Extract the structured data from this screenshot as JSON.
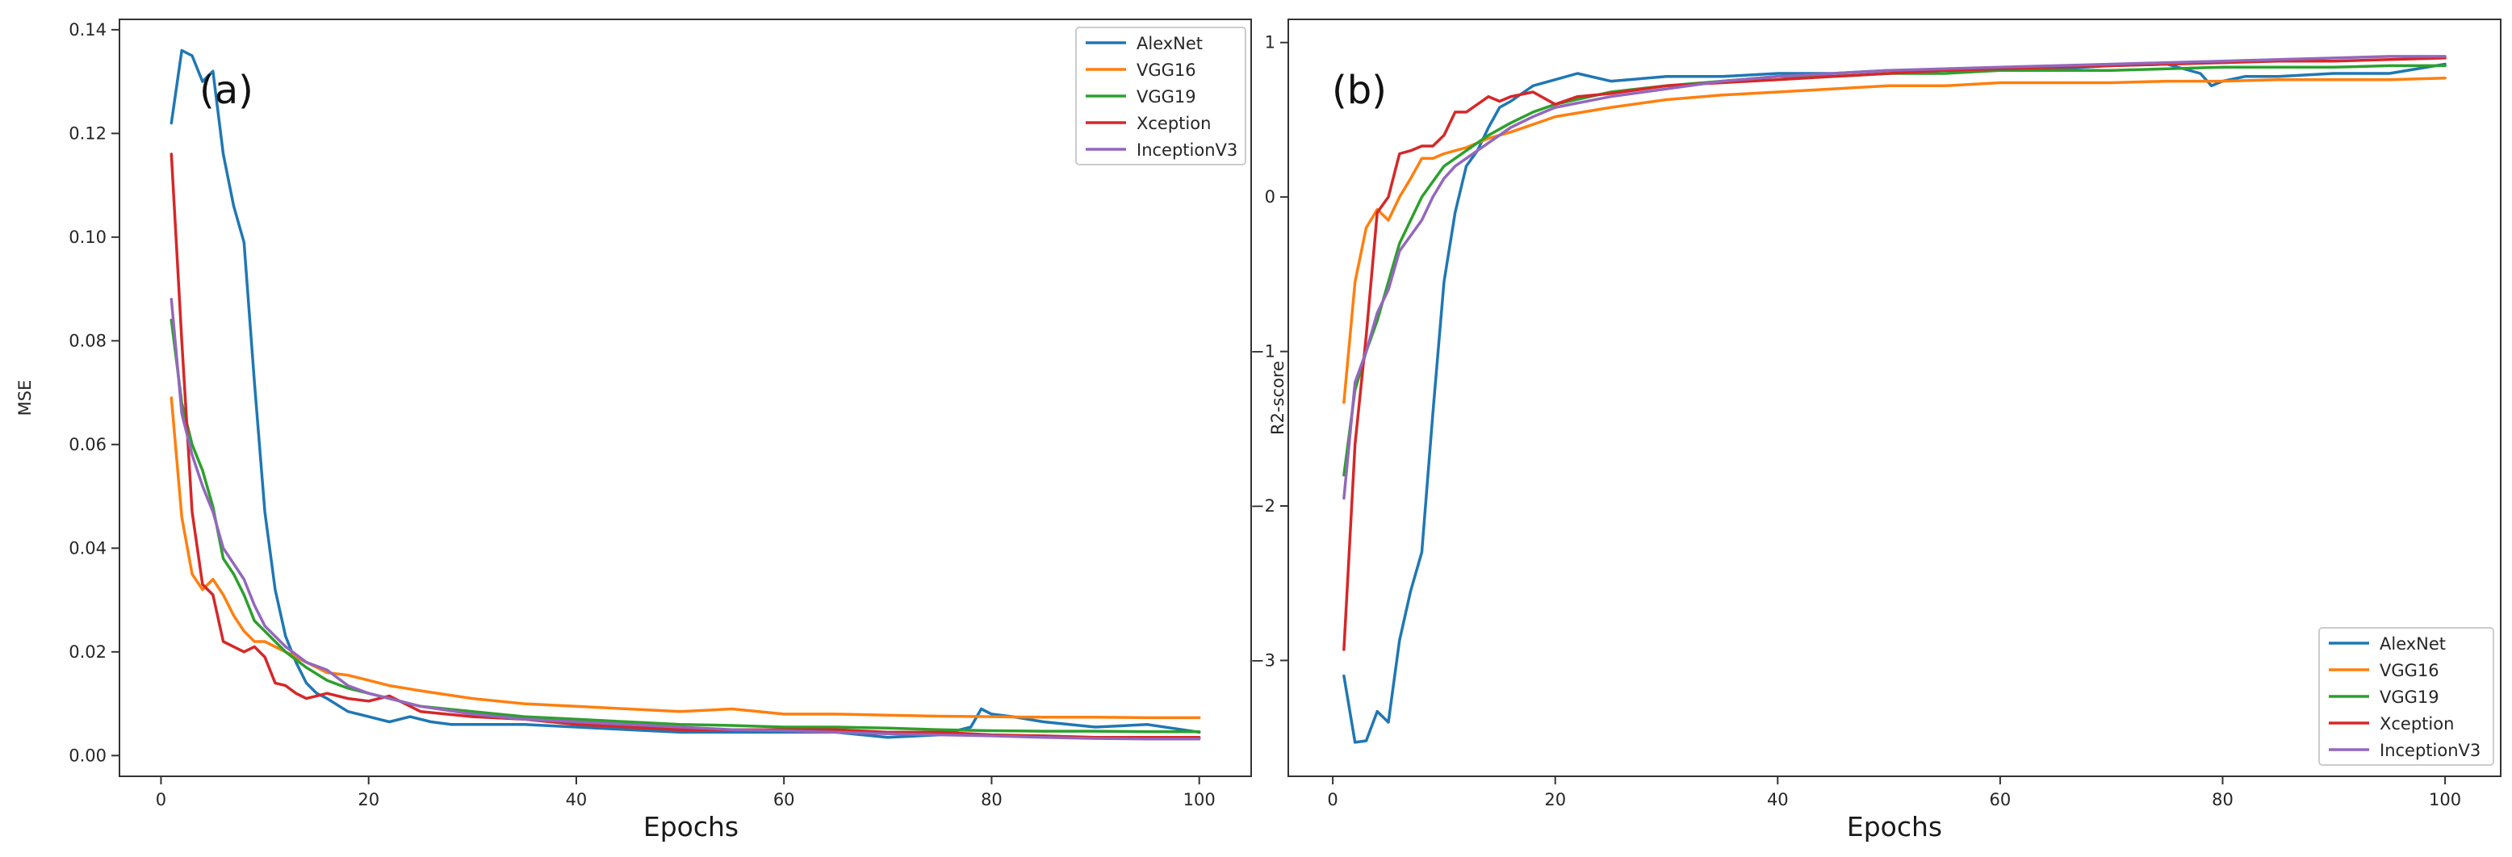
{
  "chart_data": [
    {
      "type": "line",
      "panel_label": "(a)",
      "xlabel": "Epochs",
      "ylabel": "MSE",
      "xlim": [
        -4,
        105
      ],
      "ylim": [
        -0.004,
        0.142
      ],
      "xticks": [
        0,
        20,
        40,
        60,
        80,
        100
      ],
      "yticks": [
        0.0,
        0.02,
        0.04,
        0.06,
        0.08,
        0.1,
        0.12,
        0.14
      ],
      "ytick_labels": [
        "0.00",
        "0.02",
        "0.04",
        "0.06",
        "0.08",
        "0.10",
        "0.12",
        "0.14"
      ],
      "grid": false,
      "legend_position": "top-right",
      "series": [
        {
          "name": "AlexNet",
          "color": "#1f77b4",
          "x": [
            1,
            2,
            3,
            4,
            5,
            6,
            7,
            8,
            9,
            10,
            11,
            12,
            13,
            14,
            15,
            16,
            18,
            20,
            22,
            24,
            26,
            28,
            30,
            35,
            40,
            45,
            50,
            55,
            60,
            65,
            70,
            75,
            78,
            79,
            80,
            82,
            85,
            90,
            95,
            100
          ],
          "values": [
            0.122,
            0.136,
            0.135,
            0.13,
            0.132,
            0.116,
            0.106,
            0.099,
            0.072,
            0.047,
            0.032,
            0.023,
            0.018,
            0.014,
            0.012,
            0.011,
            0.0085,
            0.0075,
            0.0065,
            0.0075,
            0.0065,
            0.006,
            0.006,
            0.006,
            0.0055,
            0.005,
            0.0045,
            0.0045,
            0.0045,
            0.0045,
            0.0035,
            0.004,
            0.0055,
            0.009,
            0.008,
            0.0075,
            0.0065,
            0.0055,
            0.006,
            0.0045
          ]
        },
        {
          "name": "VGG16",
          "color": "#ff7f0e",
          "x": [
            1,
            2,
            3,
            4,
            5,
            6,
            7,
            8,
            9,
            10,
            11,
            12,
            14,
            16,
            18,
            20,
            22,
            25,
            30,
            35,
            40,
            45,
            50,
            55,
            60,
            65,
            70,
            75,
            80,
            85,
            90,
            95,
            100
          ],
          "values": [
            0.069,
            0.046,
            0.035,
            0.032,
            0.034,
            0.031,
            0.027,
            0.024,
            0.022,
            0.022,
            0.021,
            0.02,
            0.018,
            0.016,
            0.0155,
            0.0145,
            0.0135,
            0.0125,
            0.011,
            0.01,
            0.0095,
            0.009,
            0.0085,
            0.009,
            0.008,
            0.008,
            0.0078,
            0.0076,
            0.0075,
            0.0074,
            0.0074,
            0.0073,
            0.0073
          ]
        },
        {
          "name": "VGG19",
          "color": "#2ca02c",
          "x": [
            1,
            2,
            3,
            4,
            5,
            6,
            7,
            8,
            9,
            10,
            11,
            12,
            14,
            16,
            18,
            20,
            22,
            25,
            30,
            35,
            40,
            45,
            50,
            55,
            60,
            65,
            70,
            75,
            80,
            85,
            90,
            95,
            100
          ],
          "values": [
            0.084,
            0.068,
            0.06,
            0.055,
            0.048,
            0.038,
            0.035,
            0.031,
            0.026,
            0.024,
            0.022,
            0.02,
            0.017,
            0.0145,
            0.013,
            0.012,
            0.011,
            0.0095,
            0.0085,
            0.0075,
            0.007,
            0.0065,
            0.006,
            0.0058,
            0.0055,
            0.0055,
            0.0053,
            0.005,
            0.0048,
            0.0047,
            0.0047,
            0.0046,
            0.0046
          ]
        },
        {
          "name": "Xception",
          "color": "#d62728",
          "x": [
            1,
            2,
            3,
            4,
            5,
            6,
            7,
            8,
            9,
            10,
            11,
            12,
            13,
            14,
            15,
            16,
            18,
            20,
            22,
            25,
            30,
            35,
            40,
            45,
            50,
            55,
            60,
            65,
            70,
            75,
            80,
            85,
            90,
            95,
            100
          ],
          "values": [
            0.116,
            0.08,
            0.047,
            0.033,
            0.031,
            0.022,
            0.021,
            0.02,
            0.021,
            0.019,
            0.014,
            0.0135,
            0.012,
            0.011,
            0.0115,
            0.012,
            0.011,
            0.0105,
            0.0115,
            0.0085,
            0.0075,
            0.007,
            0.006,
            0.0055,
            0.005,
            0.005,
            0.005,
            0.005,
            0.0045,
            0.0045,
            0.004,
            0.0038,
            0.0035,
            0.0035,
            0.0035
          ]
        },
        {
          "name": "InceptionV3",
          "color": "#9467bd",
          "x": [
            1,
            2,
            3,
            4,
            5,
            6,
            7,
            8,
            9,
            10,
            11,
            12,
            14,
            16,
            18,
            20,
            22,
            25,
            30,
            35,
            40,
            45,
            50,
            55,
            60,
            65,
            70,
            75,
            80,
            85,
            90,
            95,
            100
          ],
          "values": [
            0.088,
            0.066,
            0.058,
            0.052,
            0.047,
            0.04,
            0.037,
            0.034,
            0.029,
            0.025,
            0.023,
            0.021,
            0.018,
            0.0165,
            0.0135,
            0.012,
            0.011,
            0.0095,
            0.008,
            0.007,
            0.0065,
            0.006,
            0.0055,
            0.005,
            0.0048,
            0.0045,
            0.0042,
            0.004,
            0.0038,
            0.0035,
            0.0033,
            0.0032,
            0.0032
          ]
        }
      ]
    },
    {
      "type": "line",
      "panel_label": "(b)",
      "xlabel": "Epochs",
      "ylabel": "R2-score",
      "xlim": [
        -4,
        105
      ],
      "ylim": [
        -3.75,
        1.15
      ],
      "xticks": [
        0,
        20,
        40,
        60,
        80,
        100
      ],
      "yticks": [
        1,
        0,
        -1,
        -2,
        -3
      ],
      "ytick_labels": [
        "1",
        "0",
        "−1",
        "−2",
        "−3"
      ],
      "grid": false,
      "legend_position": "bottom-right",
      "series": [
        {
          "name": "AlexNet",
          "color": "#1f77b4",
          "x": [
            1,
            2,
            3,
            4,
            5,
            6,
            7,
            8,
            9,
            10,
            11,
            12,
            13,
            14,
            15,
            16,
            18,
            20,
            22,
            25,
            30,
            35,
            40,
            45,
            50,
            55,
            60,
            65,
            70,
            75,
            78,
            79,
            80,
            82,
            85,
            90,
            95,
            100
          ],
          "values": [
            -3.1,
            -3.53,
            -3.52,
            -3.33,
            -3.4,
            -2.87,
            -2.55,
            -2.3,
            -1.4,
            -0.55,
            -0.1,
            0.2,
            0.3,
            0.45,
            0.58,
            0.62,
            0.72,
            0.76,
            0.8,
            0.75,
            0.78,
            0.78,
            0.8,
            0.8,
            0.82,
            0.82,
            0.82,
            0.83,
            0.85,
            0.86,
            0.8,
            0.72,
            0.75,
            0.78,
            0.78,
            0.8,
            0.8,
            0.86
          ]
        },
        {
          "name": "VGG16",
          "color": "#ff7f0e",
          "x": [
            1,
            2,
            3,
            4,
            5,
            6,
            7,
            8,
            9,
            10,
            11,
            12,
            14,
            16,
            18,
            20,
            25,
            30,
            35,
            40,
            45,
            50,
            55,
            60,
            65,
            70,
            75,
            80,
            85,
            90,
            95,
            100
          ],
          "values": [
            -1.33,
            -0.55,
            -0.2,
            -0.08,
            -0.15,
            0.0,
            0.12,
            0.25,
            0.25,
            0.28,
            0.3,
            0.32,
            0.38,
            0.42,
            0.47,
            0.52,
            0.58,
            0.63,
            0.66,
            0.68,
            0.7,
            0.72,
            0.72,
            0.74,
            0.74,
            0.74,
            0.75,
            0.75,
            0.76,
            0.76,
            0.76,
            0.77
          ]
        },
        {
          "name": "VGG19",
          "color": "#2ca02c",
          "x": [
            1,
            2,
            3,
            4,
            5,
            6,
            7,
            8,
            9,
            10,
            11,
            12,
            14,
            16,
            18,
            20,
            25,
            30,
            35,
            40,
            45,
            50,
            55,
            60,
            65,
            70,
            75,
            80,
            85,
            90,
            95,
            100
          ],
          "values": [
            -1.8,
            -1.25,
            -1.0,
            -0.8,
            -0.55,
            -0.3,
            -0.15,
            0.0,
            0.1,
            0.2,
            0.25,
            0.3,
            0.4,
            0.48,
            0.55,
            0.6,
            0.68,
            0.72,
            0.75,
            0.78,
            0.78,
            0.8,
            0.8,
            0.82,
            0.82,
            0.82,
            0.83,
            0.84,
            0.84,
            0.84,
            0.85,
            0.85
          ]
        },
        {
          "name": "Xception",
          "color": "#d62728",
          "x": [
            1,
            2,
            3,
            4,
            5,
            6,
            7,
            8,
            9,
            10,
            11,
            12,
            13,
            14,
            15,
            16,
            18,
            20,
            22,
            25,
            30,
            35,
            40,
            45,
            50,
            55,
            60,
            65,
            70,
            75,
            80,
            85,
            90,
            95,
            100
          ],
          "values": [
            -2.93,
            -1.6,
            -0.9,
            -0.1,
            0.0,
            0.28,
            0.3,
            0.33,
            0.33,
            0.4,
            0.55,
            0.55,
            0.6,
            0.65,
            0.62,
            0.65,
            0.68,
            0.6,
            0.65,
            0.67,
            0.72,
            0.74,
            0.76,
            0.78,
            0.8,
            0.82,
            0.83,
            0.84,
            0.85,
            0.86,
            0.87,
            0.88,
            0.88,
            0.89,
            0.9
          ]
        },
        {
          "name": "InceptionV3",
          "color": "#9467bd",
          "x": [
            1,
            2,
            3,
            4,
            5,
            6,
            7,
            8,
            9,
            10,
            11,
            12,
            14,
            16,
            18,
            20,
            25,
            30,
            35,
            40,
            45,
            50,
            55,
            60,
            65,
            70,
            75,
            80,
            85,
            90,
            95,
            100
          ],
          "values": [
            -1.95,
            -1.2,
            -1.0,
            -0.75,
            -0.6,
            -0.35,
            -0.25,
            -0.15,
            0.0,
            0.12,
            0.2,
            0.25,
            0.35,
            0.45,
            0.52,
            0.58,
            0.65,
            0.7,
            0.75,
            0.78,
            0.8,
            0.82,
            0.83,
            0.84,
            0.85,
            0.86,
            0.87,
            0.88,
            0.89,
            0.9,
            0.91,
            0.91
          ]
        }
      ]
    }
  ]
}
